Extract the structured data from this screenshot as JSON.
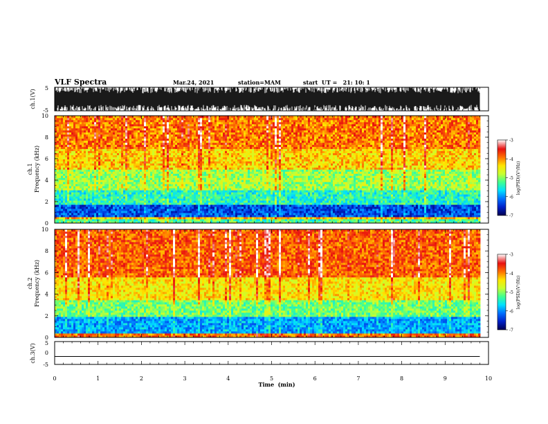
{
  "header": {
    "title": "VLF Spectra",
    "date": "Mar.24, 2021",
    "station": "station=MAM",
    "start": "start  UT =   21: 10: 1"
  },
  "chart_data": [
    {
      "type": "line",
      "id": "ch1-waveform",
      "ylabel": "ch.1(V)",
      "ylim": [
        -5,
        5
      ],
      "yticks": [
        "5",
        "-5"
      ],
      "xlim": [
        0,
        10
      ],
      "description_signal": "broadband noise saturating near ±5 V from 0 to ~9.8 min"
    },
    {
      "type": "heatmap",
      "id": "ch1-spectrogram",
      "ylabel": "ch.1\nFrequency (kHz)",
      "ylim": [
        0,
        10
      ],
      "yticks": [
        "0",
        "2",
        "4",
        "6",
        "8",
        "10"
      ],
      "xlim": [
        0,
        10
      ],
      "data_end_min": 9.8,
      "colorbar": {
        "label": "log(PSD)(V²/Hz)",
        "range": [
          -7,
          -3
        ],
        "ticks": [
          "-3",
          "-4",
          "-5",
          "-6",
          "-7"
        ]
      },
      "bands_kHz_logpsd": [
        {
          "from": 0,
          "to": 0.4,
          "level": -5.2
        },
        {
          "from": 0.4,
          "to": 0.6,
          "level": -4.2
        },
        {
          "from": 0.6,
          "to": 1.8,
          "level": -6.3
        },
        {
          "from": 1.8,
          "to": 3.0,
          "level": -5.4
        },
        {
          "from": 3.0,
          "to": 5.0,
          "level": -4.9
        },
        {
          "from": 5.0,
          "to": 7.0,
          "level": -4.3
        },
        {
          "from": 7.0,
          "to": 10.0,
          "level": -3.9
        }
      ]
    },
    {
      "type": "heatmap",
      "id": "ch2-spectrogram",
      "ylabel": "ch.2\nFrequency (kHz)",
      "ylim": [
        0,
        10
      ],
      "yticks": [
        "0",
        "2",
        "4",
        "6",
        "8",
        "10"
      ],
      "xlim": [
        0,
        10
      ],
      "data_end_min": 9.8,
      "colorbar": {
        "label": "log(PSD)(V²/Hz)",
        "range": [
          -7,
          -3
        ],
        "ticks": [
          "-3",
          "-4",
          "-5",
          "-6",
          "-7"
        ]
      },
      "bands_kHz_logpsd": [
        {
          "from": 0,
          "to": 0.3,
          "level": -3.9
        },
        {
          "from": 0.3,
          "to": 2.0,
          "level": -5.9
        },
        {
          "from": 2.0,
          "to": 3.5,
          "level": -5.1
        },
        {
          "from": 3.5,
          "to": 5.5,
          "level": -4.4
        },
        {
          "from": 5.5,
          "to": 10.0,
          "level": -3.8
        }
      ]
    },
    {
      "type": "line",
      "id": "ch3-waveform",
      "ylabel": "ch.3(V)",
      "ylim": [
        -5,
        5
      ],
      "yticks": [
        "5",
        "0",
        "-5"
      ],
      "xlim": [
        0,
        10
      ],
      "x": [
        0,
        9.8
      ],
      "y": [
        -1.5,
        -1.5
      ]
    }
  ],
  "x_axis": {
    "label": "Time  (min)",
    "ticks": [
      "0",
      "1",
      "2",
      "3",
      "4",
      "5",
      "6",
      "7",
      "8",
      "9",
      "10"
    ]
  },
  "colors": {
    "colormap": [
      "#000050",
      "#0020c8",
      "#0070ff",
      "#00e0ff",
      "#40ff90",
      "#c8ff30",
      "#ffe600",
      "#ff7000",
      "#e81010",
      "#ffffff"
    ]
  }
}
